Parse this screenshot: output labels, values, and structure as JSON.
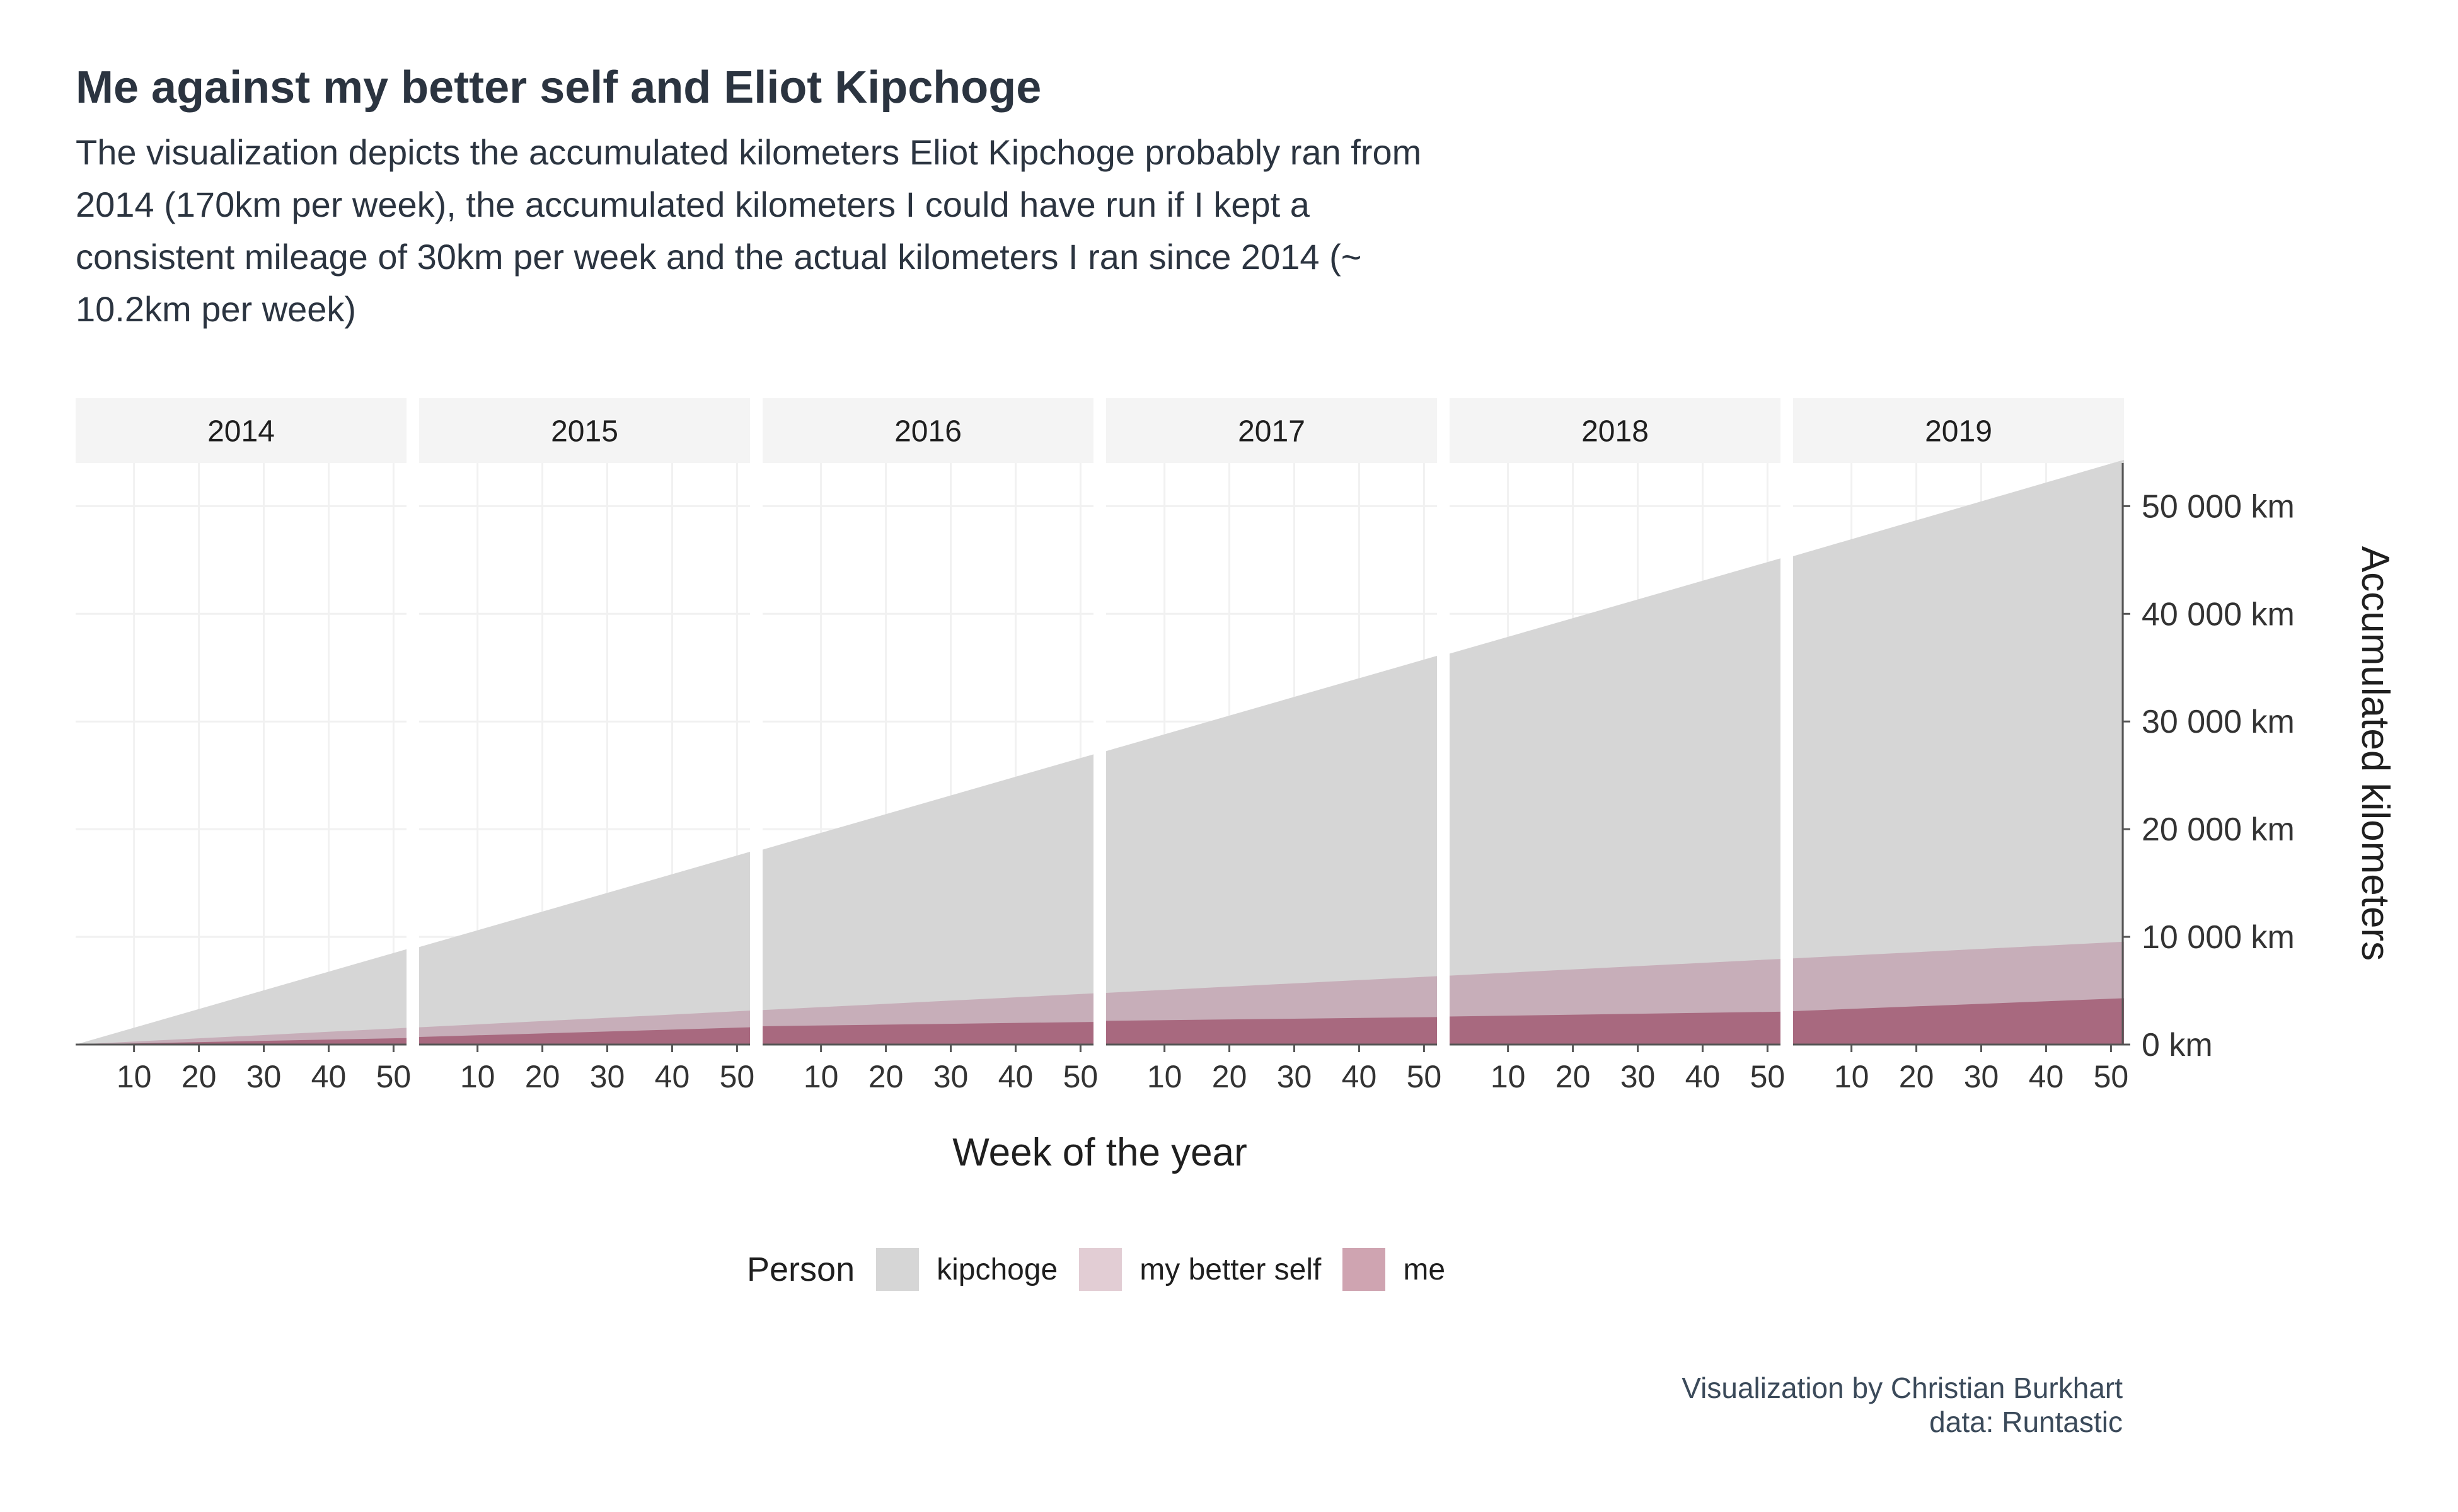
{
  "title": "Me against my better self and Eliot Kipchoge",
  "subtitle": "The visualization depicts the accumulated kilometers Eliot Kipchoge probably ran from 2014 (170km per week), the accumulated kilometers I could have run if I kept a consistent mileage of 30km per week and the actual kilometers I ran since 2014 (~ 10.2km per week)",
  "caption": {
    "line1": "Visualization by Christian Burkhart",
    "line2": "data: Runtastic"
  },
  "colors": {
    "kipchoge": "#d6d6d6",
    "better_self": "#c7aeb9",
    "me": "#a8697f",
    "legend_better_self": "#e2cdd4",
    "legend_me": "#cfa4b1",
    "strip_bg": "#f4f4f4",
    "text": "#2b3440"
  },
  "legend": {
    "title": "Person",
    "items": [
      {
        "key": "kipchoge",
        "label": "kipchoge"
      },
      {
        "key": "better_self",
        "label": "my better self"
      },
      {
        "key": "me",
        "label": "me"
      }
    ]
  },
  "chart_data": {
    "type": "area",
    "facet_by": "year",
    "facets": [
      "2014",
      "2015",
      "2016",
      "2017",
      "2018",
      "2019"
    ],
    "xlabel": "Week of the year",
    "ylabel": "Accumulated kilometers",
    "xlim": [
      1,
      52
    ],
    "x_ticks": [
      10,
      20,
      30,
      40,
      50
    ],
    "ylim": [
      0,
      54000
    ],
    "y_ticks": [
      0,
      10000,
      20000,
      30000,
      40000,
      50000
    ],
    "y_tick_labels": [
      "0 km",
      "10 000 km",
      "20 000 km",
      "30 000 km",
      "40 000 km",
      "50 000 km"
    ],
    "y_axis_position": "right",
    "stacking": "overlaid",
    "series": [
      {
        "name": "kipchoge",
        "rate_per_week": 170,
        "year_start": [
          0,
          9050,
          18100,
          27250,
          36300,
          45350
        ],
        "year_end": [
          8850,
          17900,
          26950,
          36100,
          45150,
          54300
        ]
      },
      {
        "name": "my better self",
        "rate_per_week": 30,
        "year_start": [
          0,
          1600,
          3200,
          4800,
          6400,
          8000
        ],
        "year_end": [
          1550,
          3150,
          4750,
          6350,
          7950,
          9550
        ]
      },
      {
        "name": "me",
        "rate_per_week": 10.2,
        "year_start": [
          0,
          700,
          1700,
          2200,
          2600,
          3100
        ],
        "year_end": [
          600,
          1600,
          2100,
          2550,
          3050,
          4300
        ]
      }
    ]
  }
}
